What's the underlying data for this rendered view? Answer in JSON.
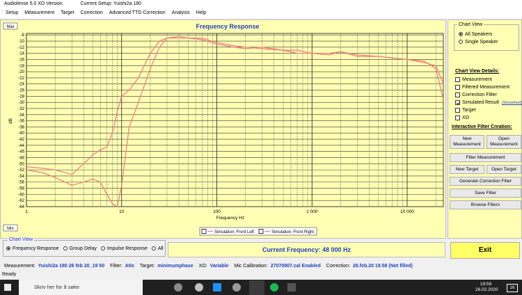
{
  "window": {
    "title": "Audiolense 5.0 XO Version.",
    "setup": "Current Setup: Yuishi2a 180"
  },
  "menu": [
    "Setup",
    "Measurement",
    "Target",
    "Correction",
    "Advanced TTD Correction",
    "Analysis",
    "Help"
  ],
  "chart_buttons": {
    "max": "Max",
    "min": "Min"
  },
  "chart_data": {
    "type": "line",
    "title": "Frequency Response",
    "x_label": "Frequency Hz",
    "y_label": "dB",
    "x_log": true,
    "grid": true,
    "x": [
      1,
      1.5,
      2,
      3,
      4,
      5,
      6,
      7,
      8,
      9,
      10,
      12,
      15,
      20,
      25,
      30,
      40,
      50,
      70,
      100,
      150,
      200,
      300,
      500,
      700,
      1000,
      1500,
      2000,
      3000,
      5000,
      7000,
      10000,
      15000,
      20000,
      24000
    ],
    "series": [
      {
        "name": "Simulation: Front Left",
        "color": "#f08080",
        "values": [
          -51,
          -51.5,
          -52,
          -53.5,
          -50,
          -47,
          -45.5,
          -44.5,
          -40,
          -33,
          -28,
          -26,
          -22,
          -14,
          -10,
          -9,
          -9,
          -9,
          -9.5,
          -11,
          -12,
          -12.5,
          -12,
          -13,
          -13,
          -14,
          -14,
          -13.5,
          -14.5,
          -15,
          -15.5,
          -16,
          -17,
          -18,
          -24
        ]
      },
      {
        "name": "Simulation: Front Right",
        "color": "#e8867a",
        "values": [
          -52,
          -53,
          -54.5,
          -57,
          -56,
          -55,
          -56,
          -60,
          -63,
          -64,
          -57,
          -38,
          -30,
          -19,
          -12,
          -9,
          -8.5,
          -9,
          -9,
          -10.5,
          -11.5,
          -12,
          -12.5,
          -13,
          -14,
          -14,
          -14.5,
          -13.5,
          -15,
          -15,
          -15.5,
          -16,
          -16.5,
          -19,
          -29
        ]
      }
    ],
    "xlim": [
      1,
      24000
    ],
    "ylim": [
      -64,
      -7.5
    ],
    "xticks": [
      1,
      10,
      100,
      {
        "value": 1000,
        "label": "1 000"
      },
      {
        "value": 10000,
        "label": "10 000"
      }
    ],
    "x_minor_ticks": [
      2,
      3,
      4,
      5,
      6,
      7,
      8,
      9,
      20,
      30,
      40,
      50,
      60,
      70,
      80,
      90,
      200,
      300,
      400,
      500,
      600,
      700,
      800,
      900,
      2000,
      3000,
      4000,
      5000,
      6000,
      7000,
      8000,
      9000,
      20000
    ],
    "yticks": [
      -8,
      -10,
      -12,
      -14,
      -16,
      -18,
      -20,
      -22,
      -24,
      -26,
      -28,
      -30,
      -32,
      -34,
      -36,
      -38,
      -40,
      -42,
      -44,
      -46,
      -48,
      -50,
      -52,
      -54,
      -56,
      -58,
      -60,
      -62,
      -64
    ]
  },
  "side_panel": {
    "chart_view": {
      "title": "Chart View",
      "options": [
        "All Speakers",
        "Single Speaker"
      ],
      "selected": 0
    },
    "details": {
      "title": "Chart View Details:",
      "items": [
        "Measurement",
        "Filtered Measurement",
        "Correction Filter",
        "Simulated Result",
        "Target",
        "XO"
      ],
      "checked": [
        3
      ],
      "smoothed": "(Smoothed)"
    },
    "filter_creation": {
      "title": "Interactive Filter Creation:",
      "buttons": [
        "New Measurement",
        "Open Measurement",
        "Filter Measurement",
        "New Target",
        "Open Target",
        "Generate Correction Filter",
        "Save Filter",
        "Browse Filters"
      ]
    }
  },
  "bottom": {
    "chart_view": {
      "title": "Chart View",
      "options": [
        "Frequency Response",
        "Group Delay",
        "Impulse Response",
        "All"
      ],
      "selected": 0
    },
    "current_frequency": "Current Frequency: 48 000 Hz",
    "exit": "Exit"
  },
  "status": [
    {
      "label": "Measurement:",
      "value": "Yuishi2a 180 26 feb 20_19 50"
    },
    {
      "label": "Filter:",
      "value": "Atle"
    },
    {
      "label": "Target:",
      "value": "minimumphase"
    },
    {
      "label": "XO:",
      "value": "Variable"
    },
    {
      "label": "Mic Calibration:",
      "value": "27070907.cal Enabled"
    },
    {
      "label": "Correction:",
      "value": "26.feb.20 19.58  (Not filled)"
    }
  ],
  "state": "Ready",
  "taskbar": {
    "search": "Skriv her for å søke",
    "time": "19:59",
    "date": "26.02.2020",
    "notifications": "16"
  }
}
